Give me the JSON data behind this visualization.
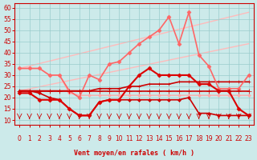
{
  "bg_color": "#cceaea",
  "grid_color": "#99cccc",
  "xlabel": "Vent moyen/en rafales ( km/h )",
  "xlim": [
    -0.5,
    23.5
  ],
  "ylim": [
    8,
    62
  ],
  "yticks": [
    10,
    15,
    20,
    25,
    30,
    35,
    40,
    45,
    50,
    55,
    60
  ],
  "xticks": [
    0,
    1,
    2,
    3,
    4,
    5,
    6,
    7,
    8,
    9,
    10,
    11,
    12,
    13,
    14,
    15,
    16,
    17,
    18,
    19,
    20,
    21,
    22,
    23
  ],
  "lines": [
    {
      "x": [
        0,
        1,
        2,
        3,
        4,
        5,
        6,
        7,
        8,
        9,
        10,
        11,
        12,
        13,
        14,
        15,
        16,
        17,
        18,
        19,
        20,
        21,
        22,
        23
      ],
      "y": [
        23,
        23,
        23,
        23,
        23,
        23,
        23,
        23,
        23,
        23,
        23,
        23,
        23,
        23,
        23,
        23,
        23,
        23,
        23,
        23,
        23,
        23,
        23,
        23
      ],
      "color": "#cc0000",
      "lw": 1.2,
      "marker": "+",
      "ms": 4,
      "zorder": 5
    },
    {
      "x": [
        0,
        1,
        2,
        3,
        4,
        5,
        6,
        7,
        8,
        9,
        10,
        11,
        12,
        13,
        14,
        15,
        16,
        17,
        18,
        19,
        20,
        21,
        22,
        23
      ],
      "y": [
        23,
        23,
        22,
        20,
        19,
        15,
        12,
        12,
        18,
        19,
        19,
        19,
        19,
        19,
        19,
        19,
        19,
        20,
        13,
        13,
        12,
        12,
        12,
        12
      ],
      "color": "#cc0000",
      "lw": 1.2,
      "marker": "D",
      "ms": 2,
      "zorder": 4
    },
    {
      "x": [
        0,
        1,
        2,
        3,
        4,
        5,
        6,
        7,
        8,
        9,
        10,
        11,
        12,
        13,
        14,
        15,
        16,
        17,
        18,
        19,
        20,
        21,
        22,
        23
      ],
      "y": [
        22,
        22,
        19,
        19,
        19,
        15,
        12,
        12,
        18,
        19,
        19,
        25,
        30,
        33,
        30,
        30,
        30,
        30,
        26,
        26,
        23,
        23,
        15,
        12
      ],
      "color": "#dd0000",
      "lw": 1.5,
      "marker": "D",
      "ms": 2.5,
      "zorder": 4
    },
    {
      "x": [
        0,
        1,
        2,
        3,
        4,
        5,
        6,
        7,
        8,
        9,
        10,
        11,
        12,
        13,
        14,
        15,
        16,
        17,
        18,
        19,
        20,
        21,
        22,
        23
      ],
      "y": [
        23,
        23,
        23,
        23,
        23,
        23,
        23,
        23,
        24,
        24,
        24,
        25,
        25,
        26,
        26,
        26,
        27,
        27,
        27,
        27,
        27,
        27,
        27,
        27
      ],
      "color": "#cc0000",
      "lw": 1.2,
      "marker": "+",
      "ms": 3,
      "zorder": 3
    },
    {
      "x": [
        0,
        1,
        2,
        3,
        4,
        5,
        6,
        7,
        8,
        9,
        10,
        11,
        12,
        13,
        14,
        15,
        16,
        17,
        18,
        19,
        20,
        21,
        22,
        23
      ],
      "y": [
        33,
        33,
        33,
        30,
        30,
        23,
        20,
        30,
        28,
        35,
        36,
        40,
        44,
        47,
        50,
        56,
        44,
        58,
        39,
        34,
        24,
        24,
        24,
        30
      ],
      "color": "#ff6666",
      "lw": 1.2,
      "marker": "D",
      "ms": 2.5,
      "zorder": 3
    },
    {
      "x": [
        0,
        1,
        2,
        3,
        4,
        5,
        6,
        7,
        8,
        9,
        10,
        11,
        12,
        13,
        14,
        15,
        16,
        17,
        18,
        19,
        20,
        21,
        22,
        23
      ],
      "y": [
        33,
        33,
        33,
        30,
        30,
        22,
        21,
        21,
        21,
        21,
        21,
        21,
        21,
        21,
        21,
        21,
        21,
        21,
        21,
        21,
        21,
        21,
        21,
        21
      ],
      "color": "#ffaaaa",
      "lw": 1.0,
      "marker": "D",
      "ms": 2,
      "zorder": 2
    },
    {
      "x": [
        0,
        23
      ],
      "y": [
        33,
        58
      ],
      "color": "#ffbbbb",
      "lw": 1.0,
      "marker": null,
      "ms": 0,
      "zorder": 1
    },
    {
      "x": [
        0,
        23
      ],
      "y": [
        23,
        44
      ],
      "color": "#ffbbbb",
      "lw": 1.0,
      "marker": null,
      "ms": 0,
      "zorder": 1
    }
  ]
}
